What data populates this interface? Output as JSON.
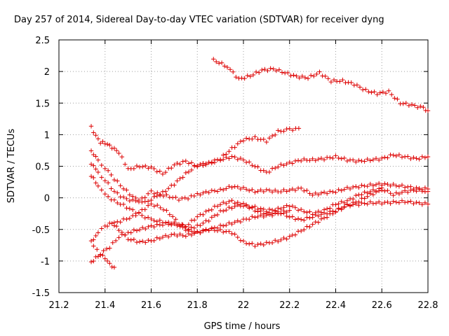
{
  "chart_data": {
    "type": "scatter",
    "title": "Day 257 of 2014, Sidereal Day-to-day VTEC variation (SDTVAR) for receiver dyng",
    "xlabel": "GPS time / hours",
    "ylabel": "SDTVAR / TECUs",
    "xlim": [
      21.2,
      22.8
    ],
    "ylim": [
      -1.5,
      2.5
    ],
    "x_ticks": [
      21.2,
      21.4,
      21.6,
      21.8,
      22.0,
      22.2,
      22.4,
      22.6,
      22.8
    ],
    "x_tick_labels": [
      "21.2",
      "21.4",
      "21.6",
      "21.8",
      "22",
      "22.2",
      "22.4",
      "22.6",
      "22.8"
    ],
    "y_ticks": [
      -1.5,
      -1.0,
      -0.5,
      0.0,
      0.5,
      1.0,
      1.5,
      2.0,
      2.5
    ],
    "y_tick_labels": [
      "-1.5",
      "-1",
      "-0.5",
      "0",
      "0.5",
      "1",
      "1.5",
      "2",
      "2.5"
    ],
    "grid": true,
    "marker": "+",
    "marker_color": "#dd0000",
    "series": [
      {
        "name": "trace-1",
        "x": [
          21.87,
          21.93,
          21.98,
          22.03,
          22.08,
          22.13,
          22.18,
          22.23,
          22.28,
          22.33,
          22.38,
          22.43,
          22.48,
          22.53,
          22.58,
          22.63,
          22.68,
          22.73,
          22.78,
          22.8
        ],
        "y": [
          2.18,
          2.08,
          1.88,
          1.93,
          2.02,
          2.04,
          1.98,
          1.92,
          1.9,
          1.98,
          1.85,
          1.85,
          1.8,
          1.7,
          1.65,
          1.68,
          1.5,
          1.47,
          1.42,
          1.38
        ]
      },
      {
        "name": "trace-2",
        "x": [
          21.34,
          21.36,
          21.38,
          21.4,
          21.43,
          21.46,
          21.5,
          21.55,
          21.6,
          21.65,
          21.7,
          21.75,
          21.8,
          21.85,
          21.9,
          21.95,
          22.0,
          22.05,
          22.1,
          22.15,
          22.2,
          22.24
        ],
        "y": [
          1.12,
          0.98,
          0.88,
          0.87,
          0.8,
          0.72,
          0.45,
          0.5,
          0.48,
          0.38,
          0.52,
          0.58,
          0.5,
          0.55,
          0.62,
          0.78,
          0.92,
          0.95,
          0.9,
          1.05,
          1.08,
          1.1
        ]
      },
      {
        "name": "trace-3",
        "x": [
          21.34,
          21.37,
          21.4,
          21.44,
          21.48,
          21.52,
          21.56,
          21.6,
          21.65,
          21.7,
          21.75,
          21.8,
          21.85,
          21.9,
          21.95,
          22.0,
          22.05,
          22.1,
          22.15,
          22.2,
          22.25,
          22.3,
          22.35,
          22.4,
          22.45,
          22.5,
          22.55,
          22.6,
          22.65,
          22.7,
          22.75,
          22.8
        ],
        "y": [
          0.75,
          0.58,
          0.48,
          0.3,
          0.15,
          0.02,
          -0.08,
          -0.02,
          0.08,
          0.22,
          0.38,
          0.52,
          0.55,
          0.6,
          0.65,
          0.6,
          0.5,
          0.4,
          0.5,
          0.55,
          0.6,
          0.6,
          0.62,
          0.65,
          0.6,
          0.58,
          0.6,
          0.62,
          0.68,
          0.65,
          0.62,
          0.65
        ]
      },
      {
        "name": "trace-4",
        "x": [
          21.34,
          21.37,
          21.4,
          21.44,
          21.48,
          21.52,
          21.56,
          21.6,
          21.64,
          21.68,
          21.72,
          21.76,
          21.8,
          21.85,
          21.9,
          21.95,
          22.0,
          22.05,
          22.1,
          22.15,
          22.2,
          22.25,
          22.3,
          22.35,
          22.4,
          22.45,
          22.5,
          22.55,
          22.6,
          22.65,
          22.7,
          22.75,
          22.8
        ],
        "y": [
          0.55,
          0.4,
          0.28,
          0.1,
          0.0,
          -0.05,
          -0.02,
          0.1,
          0.05,
          0.02,
          -0.02,
          0.0,
          0.05,
          0.1,
          0.12,
          0.18,
          0.15,
          0.1,
          0.12,
          0.1,
          0.12,
          0.15,
          0.05,
          0.08,
          0.1,
          0.15,
          0.18,
          0.2,
          0.22,
          0.2,
          0.18,
          0.15,
          0.14
        ]
      },
      {
        "name": "trace-5",
        "x": [
          21.34,
          21.37,
          21.4,
          21.44,
          21.48,
          21.52,
          21.56,
          21.6,
          21.65,
          21.7,
          21.75,
          21.8,
          21.85,
          21.9,
          21.95,
          22.0,
          22.05,
          22.1,
          22.15,
          22.2,
          22.25,
          22.3,
          22.35,
          22.4,
          22.45,
          22.5,
          22.55,
          22.6,
          22.65,
          22.7,
          22.75,
          22.8
        ],
        "y": [
          0.35,
          0.2,
          0.05,
          -0.05,
          -0.12,
          -0.2,
          -0.28,
          -0.35,
          -0.38,
          -0.42,
          -0.45,
          -0.3,
          -0.2,
          -0.1,
          -0.05,
          -0.12,
          -0.15,
          -0.2,
          -0.18,
          -0.12,
          -0.2,
          -0.25,
          -0.2,
          -0.1,
          -0.05,
          0.05,
          0.1,
          0.15,
          0.05,
          0.1,
          0.12,
          0.1
        ]
      },
      {
        "name": "trace-6",
        "x": [
          21.44,
          21.48,
          21.52,
          21.56,
          21.6,
          21.64,
          21.68,
          21.72,
          21.76,
          21.8,
          21.85,
          21.9,
          21.95,
          22.0,
          22.05,
          22.1,
          22.15,
          22.2,
          22.25,
          22.3,
          22.35,
          22.4,
          22.45,
          22.5,
          22.55,
          22.6,
          22.65,
          22.7,
          22.75,
          22.8
        ],
        "y": [
          -0.4,
          -0.35,
          -0.3,
          -0.2,
          -0.1,
          -0.15,
          -0.25,
          -0.4,
          -0.5,
          -0.45,
          -0.35,
          -0.22,
          -0.15,
          -0.1,
          -0.2,
          -0.25,
          -0.22,
          -0.3,
          -0.35,
          -0.3,
          -0.25,
          -0.2,
          -0.12,
          -0.1,
          -0.08,
          -0.08,
          -0.07,
          -0.06,
          -0.08,
          -0.1
        ]
      },
      {
        "name": "trace-7",
        "x": [
          21.34,
          21.37,
          21.4,
          21.43,
          21.46,
          21.5,
          21.55,
          21.6,
          21.65,
          21.7,
          21.75,
          21.8,
          21.85,
          21.9,
          21.95,
          22.0,
          22.05,
          22.1,
          22.15,
          22.2,
          22.25,
          22.3,
          22.35,
          22.4,
          22.45,
          22.5,
          22.55,
          22.6
        ],
        "y": [
          -0.7,
          -0.55,
          -0.45,
          -0.4,
          -0.5,
          -0.65,
          -0.7,
          -0.68,
          -0.62,
          -0.58,
          -0.6,
          -0.55,
          -0.5,
          -0.52,
          -0.55,
          -0.7,
          -0.75,
          -0.72,
          -0.68,
          -0.62,
          -0.52,
          -0.42,
          -0.32,
          -0.22,
          -0.12,
          -0.05,
          0.05,
          0.12
        ]
      },
      {
        "name": "trace-8",
        "x": [
          21.34,
          21.36,
          21.38,
          21.4,
          21.42,
          21.44
        ],
        "y": [
          -1.02,
          -0.95,
          -0.9,
          -0.95,
          -1.05,
          -1.1
        ]
      },
      {
        "name": "trace-9",
        "x": [
          21.35,
          21.38,
          21.42,
          21.46,
          21.5,
          21.55,
          21.6,
          21.65,
          21.7,
          21.75,
          21.8,
          21.85,
          21.9,
          21.95,
          22.0,
          22.05,
          22.1,
          22.15,
          22.2
        ],
        "y": [
          -0.75,
          -0.88,
          -0.78,
          -0.62,
          -0.55,
          -0.5,
          -0.45,
          -0.42,
          -0.4,
          -0.5,
          -0.55,
          -0.5,
          -0.45,
          -0.4,
          -0.35,
          -0.3,
          -0.28,
          -0.25,
          -0.2
        ]
      }
    ]
  }
}
